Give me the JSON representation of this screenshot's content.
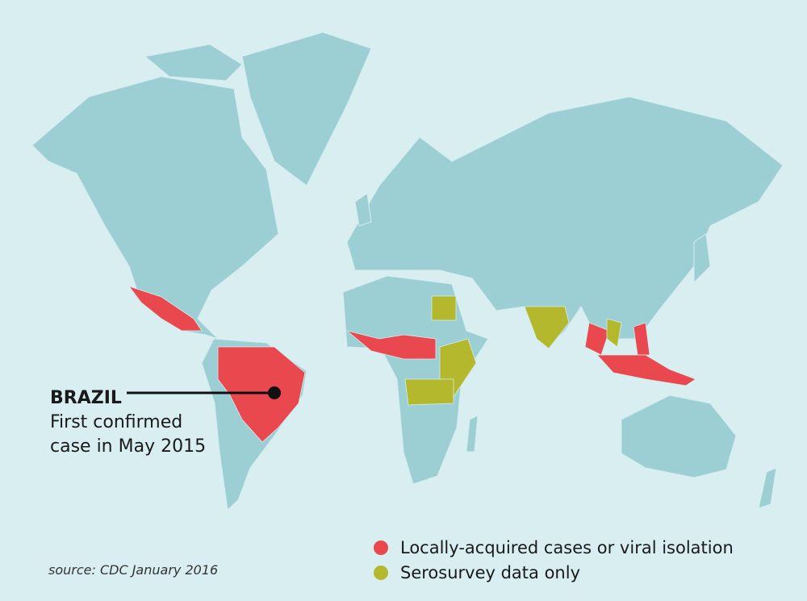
{
  "annotation": {
    "title": "BRAZIL",
    "lines": [
      "First confirmed",
      "case in May 2015"
    ]
  },
  "legend": [
    {
      "label": "Locally-acquired cases or viral isolation",
      "color": "#e8484e"
    },
    {
      "label": "Serosurvey data only",
      "color": "#b3b82c"
    }
  ],
  "source": "source: CDC January 2016"
}
